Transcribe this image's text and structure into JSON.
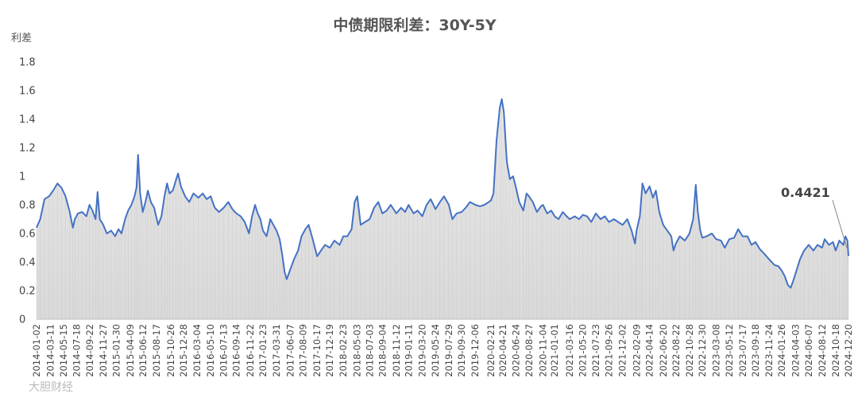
{
  "chart_data": {
    "type": "area",
    "title": "中债期限利差：30Y-5Y",
    "ylabel": "利差",
    "xlabel": "",
    "ylim": [
      0,
      1.8
    ],
    "yticks": [
      0,
      0.2,
      0.4,
      0.6,
      0.8,
      1,
      1.2,
      1.4,
      1.6,
      1.8
    ],
    "ytick_labels": [
      "0",
      "0.2",
      "0.4",
      "0.6",
      "0.8",
      "1",
      "1.2",
      "1.4",
      "1.6",
      "1.8"
    ],
    "x_tick_labels": [
      "2014-01-02",
      "2014-03-11",
      "2014-05-15",
      "2014-07-18",
      "2014-09-22",
      "2014-11-27",
      "2015-01-30",
      "2015-04-09",
      "2015-06-12",
      "2015-08-17",
      "2015-10-26",
      "2015-12-28",
      "2016-03-04",
      "2016-05-10",
      "2016-07-13",
      "2016-09-14",
      "2016-11-22",
      "2017-01-23",
      "2017-03-31",
      "2017-06-07",
      "2017-08-09",
      "2017-10-17",
      "2017-12-19",
      "2018-02-23",
      "2018-05-03",
      "2018-07-03",
      "2018-09-04",
      "2018-11-12",
      "2019-01-11",
      "2019-03-20",
      "2019-05-24",
      "2019-07-29",
      "2019-09-30",
      "2019-12-06",
      "2020-02-21",
      "2020-04-21",
      "2020-06-24",
      "2020-08-27",
      "2020-11-04",
      "2021-01-01",
      "2021-03-16",
      "2021-05-20",
      "2021-07-23",
      "2021-09-26",
      "2021-12-02",
      "2022-02-09",
      "2022-04-14",
      "2022-06-20",
      "2022-08-22",
      "2022-10-28",
      "2022-12-30",
      "2023-03-08",
      "2023-05-12",
      "2023-07-17",
      "2023-09-18",
      "2023-11-24",
      "2024-01-26",
      "2024-04-03",
      "2024-06-07",
      "2024-08-12",
      "2024-10-18",
      "2024-12-20"
    ],
    "series": [
      {
        "color": "#4472C4",
        "fill": "#d9d9d9",
        "points": [
          [
            "2014-01-02",
            0.64
          ],
          [
            "2014-01-20",
            0.7
          ],
          [
            "2014-02-10",
            0.84
          ],
          [
            "2014-03-05",
            0.86
          ],
          [
            "2014-03-25",
            0.9
          ],
          [
            "2014-04-15",
            0.95
          ],
          [
            "2014-05-05",
            0.92
          ],
          [
            "2014-05-25",
            0.86
          ],
          [
            "2014-06-15",
            0.75
          ],
          [
            "2014-06-30",
            0.64
          ],
          [
            "2014-07-10",
            0.7
          ],
          [
            "2014-07-25",
            0.74
          ],
          [
            "2014-08-15",
            0.75
          ],
          [
            "2014-09-05",
            0.72
          ],
          [
            "2014-09-20",
            0.8
          ],
          [
            "2014-10-05",
            0.76
          ],
          [
            "2014-10-20",
            0.7
          ],
          [
            "2014-10-30",
            0.89
          ],
          [
            "2014-11-10",
            0.7
          ],
          [
            "2014-11-27",
            0.66
          ],
          [
            "2014-12-15",
            0.6
          ],
          [
            "2015-01-05",
            0.62
          ],
          [
            "2015-01-25",
            0.58
          ],
          [
            "2015-02-10",
            0.63
          ],
          [
            "2015-02-25",
            0.6
          ],
          [
            "2015-03-15",
            0.7
          ],
          [
            "2015-03-30",
            0.76
          ],
          [
            "2015-04-15",
            0.8
          ],
          [
            "2015-04-30",
            0.86
          ],
          [
            "2015-05-10",
            0.92
          ],
          [
            "2015-05-18",
            1.15
          ],
          [
            "2015-05-28",
            0.88
          ],
          [
            "2015-06-10",
            0.75
          ],
          [
            "2015-06-25",
            0.83
          ],
          [
            "2015-07-05",
            0.9
          ],
          [
            "2015-07-20",
            0.82
          ],
          [
            "2015-08-05",
            0.78
          ],
          [
            "2015-08-25",
            0.66
          ],
          [
            "2015-09-10",
            0.72
          ],
          [
            "2015-09-25",
            0.86
          ],
          [
            "2015-10-08",
            0.95
          ],
          [
            "2015-10-20",
            0.88
          ],
          [
            "2015-11-05",
            0.9
          ],
          [
            "2015-11-20",
            0.97
          ],
          [
            "2015-12-01",
            1.02
          ],
          [
            "2015-12-15",
            0.93
          ],
          [
            "2016-01-05",
            0.86
          ],
          [
            "2016-01-25",
            0.82
          ],
          [
            "2016-02-15",
            0.88
          ],
          [
            "2016-03-10",
            0.85
          ],
          [
            "2016-04-01",
            0.88
          ],
          [
            "2016-04-20",
            0.84
          ],
          [
            "2016-05-10",
            0.86
          ],
          [
            "2016-05-30",
            0.78
          ],
          [
            "2016-06-20",
            0.75
          ],
          [
            "2016-07-13",
            0.78
          ],
          [
            "2016-08-05",
            0.82
          ],
          [
            "2016-08-25",
            0.77
          ],
          [
            "2016-09-14",
            0.74
          ],
          [
            "2016-10-05",
            0.72
          ],
          [
            "2016-10-25",
            0.68
          ],
          [
            "2016-11-15",
            0.6
          ],
          [
            "2016-11-30",
            0.72
          ],
          [
            "2016-12-15",
            0.8
          ],
          [
            "2016-12-28",
            0.74
          ],
          [
            "2017-01-10",
            0.7
          ],
          [
            "2017-01-23",
            0.62
          ],
          [
            "2017-02-10",
            0.58
          ],
          [
            "2017-02-28",
            0.7
          ],
          [
            "2017-03-15",
            0.66
          ],
          [
            "2017-03-31",
            0.62
          ],
          [
            "2017-04-15",
            0.56
          ],
          [
            "2017-04-28",
            0.45
          ],
          [
            "2017-05-10",
            0.33
          ],
          [
            "2017-05-20",
            0.28
          ],
          [
            "2017-06-07",
            0.35
          ],
          [
            "2017-06-25",
            0.42
          ],
          [
            "2017-07-15",
            0.48
          ],
          [
            "2017-08-01",
            0.58
          ],
          [
            "2017-08-20",
            0.63
          ],
          [
            "2017-09-05",
            0.66
          ],
          [
            "2017-09-25",
            0.56
          ],
          [
            "2017-10-17",
            0.44
          ],
          [
            "2017-11-05",
            0.48
          ],
          [
            "2017-11-25",
            0.52
          ],
          [
            "2017-12-19",
            0.5
          ],
          [
            "2018-01-10",
            0.55
          ],
          [
            "2018-02-05",
            0.52
          ],
          [
            "2018-02-23",
            0.58
          ],
          [
            "2018-03-15",
            0.58
          ],
          [
            "2018-04-05",
            0.63
          ],
          [
            "2018-04-20",
            0.82
          ],
          [
            "2018-05-03",
            0.86
          ],
          [
            "2018-05-20",
            0.66
          ],
          [
            "2018-06-10",
            0.68
          ],
          [
            "2018-07-03",
            0.7
          ],
          [
            "2018-07-25",
            0.78
          ],
          [
            "2018-08-15",
            0.82
          ],
          [
            "2018-09-04",
            0.74
          ],
          [
            "2018-09-25",
            0.76
          ],
          [
            "2018-10-15",
            0.8
          ],
          [
            "2018-11-12",
            0.74
          ],
          [
            "2018-12-05",
            0.78
          ],
          [
            "2018-12-25",
            0.75
          ],
          [
            "2019-01-11",
            0.8
          ],
          [
            "2019-02-05",
            0.74
          ],
          [
            "2019-02-25",
            0.76
          ],
          [
            "2019-03-20",
            0.72
          ],
          [
            "2019-04-10",
            0.8
          ],
          [
            "2019-04-30",
            0.84
          ],
          [
            "2019-05-24",
            0.77
          ],
          [
            "2019-06-15",
            0.82
          ],
          [
            "2019-07-05",
            0.86
          ],
          [
            "2019-07-29",
            0.8
          ],
          [
            "2019-08-15",
            0.7
          ],
          [
            "2019-09-05",
            0.74
          ],
          [
            "2019-09-30",
            0.75
          ],
          [
            "2019-10-20",
            0.78
          ],
          [
            "2019-11-10",
            0.82
          ],
          [
            "2019-12-06",
            0.8
          ],
          [
            "2019-12-30",
            0.79
          ],
          [
            "2020-01-20",
            0.8
          ],
          [
            "2020-02-21",
            0.83
          ],
          [
            "2020-03-05",
            0.88
          ],
          [
            "2020-03-20",
            1.25
          ],
          [
            "2020-04-05",
            1.48
          ],
          [
            "2020-04-15",
            1.54
          ],
          [
            "2020-04-25",
            1.45
          ],
          [
            "2020-05-10",
            1.1
          ],
          [
            "2020-05-25",
            0.98
          ],
          [
            "2020-06-10",
            1.0
          ],
          [
            "2020-06-24",
            0.92
          ],
          [
            "2020-07-10",
            0.82
          ],
          [
            "2020-07-30",
            0.76
          ],
          [
            "2020-08-15",
            0.88
          ],
          [
            "2020-08-27",
            0.86
          ],
          [
            "2020-09-15",
            0.82
          ],
          [
            "2020-10-05",
            0.75
          ],
          [
            "2020-10-25",
            0.79
          ],
          [
            "2020-11-04",
            0.8
          ],
          [
            "2020-11-25",
            0.74
          ],
          [
            "2020-12-15",
            0.76
          ],
          [
            "2021-01-01",
            0.72
          ],
          [
            "2021-01-20",
            0.7
          ],
          [
            "2021-02-10",
            0.75
          ],
          [
            "2021-03-01",
            0.72
          ],
          [
            "2021-03-16",
            0.7
          ],
          [
            "2021-04-10",
            0.72
          ],
          [
            "2021-05-01",
            0.7
          ],
          [
            "2021-05-20",
            0.73
          ],
          [
            "2021-06-10",
            0.72
          ],
          [
            "2021-06-30",
            0.68
          ],
          [
            "2021-07-23",
            0.74
          ],
          [
            "2021-08-15",
            0.7
          ],
          [
            "2021-09-05",
            0.72
          ],
          [
            "2021-09-26",
            0.68
          ],
          [
            "2021-10-20",
            0.7
          ],
          [
            "2021-11-10",
            0.68
          ],
          [
            "2021-12-02",
            0.66
          ],
          [
            "2021-12-25",
            0.7
          ],
          [
            "2022-01-15",
            0.62
          ],
          [
            "2022-02-01",
            0.53
          ],
          [
            "2022-02-09",
            0.62
          ],
          [
            "2022-02-25",
            0.72
          ],
          [
            "2022-03-10",
            0.95
          ],
          [
            "2022-03-25",
            0.88
          ],
          [
            "2022-04-14",
            0.93
          ],
          [
            "2022-04-30",
            0.85
          ],
          [
            "2022-05-15",
            0.9
          ],
          [
            "2022-06-01",
            0.75
          ],
          [
            "2022-06-20",
            0.66
          ],
          [
            "2022-07-10",
            0.62
          ],
          [
            "2022-07-30",
            0.58
          ],
          [
            "2022-08-10",
            0.48
          ],
          [
            "2022-08-22",
            0.53
          ],
          [
            "2022-09-10",
            0.58
          ],
          [
            "2022-10-05",
            0.55
          ],
          [
            "2022-10-28",
            0.6
          ],
          [
            "2022-11-15",
            0.7
          ],
          [
            "2022-11-28",
            0.94
          ],
          [
            "2022-12-08",
            0.75
          ],
          [
            "2022-12-20",
            0.62
          ],
          [
            "2022-12-30",
            0.57
          ],
          [
            "2023-01-20",
            0.58
          ],
          [
            "2023-02-15",
            0.6
          ],
          [
            "2023-03-08",
            0.56
          ],
          [
            "2023-04-01",
            0.55
          ],
          [
            "2023-04-20",
            0.5
          ],
          [
            "2023-05-12",
            0.56
          ],
          [
            "2023-06-05",
            0.57
          ],
          [
            "2023-06-25",
            0.63
          ],
          [
            "2023-07-17",
            0.58
          ],
          [
            "2023-08-10",
            0.58
          ],
          [
            "2023-08-30",
            0.52
          ],
          [
            "2023-09-18",
            0.54
          ],
          [
            "2023-10-10",
            0.49
          ],
          [
            "2023-10-30",
            0.46
          ],
          [
            "2023-11-24",
            0.42
          ],
          [
            "2023-12-20",
            0.38
          ],
          [
            "2024-01-10",
            0.37
          ],
          [
            "2024-01-26",
            0.34
          ],
          [
            "2024-02-10",
            0.3
          ],
          [
            "2024-02-25",
            0.24
          ],
          [
            "2024-03-10",
            0.22
          ],
          [
            "2024-03-25",
            0.28
          ],
          [
            "2024-04-03",
            0.32
          ],
          [
            "2024-04-25",
            0.42
          ],
          [
            "2024-05-15",
            0.48
          ],
          [
            "2024-06-07",
            0.52
          ],
          [
            "2024-06-30",
            0.48
          ],
          [
            "2024-07-20",
            0.52
          ],
          [
            "2024-08-12",
            0.5
          ],
          [
            "2024-08-25",
            0.56
          ],
          [
            "2024-09-15",
            0.52
          ],
          [
            "2024-10-05",
            0.54
          ],
          [
            "2024-10-18",
            0.48
          ],
          [
            "2024-11-05",
            0.55
          ],
          [
            "2024-11-25",
            0.52
          ],
          [
            "2024-12-05",
            0.58
          ],
          [
            "2024-12-15",
            0.55
          ],
          [
            "2024-12-20",
            0.4421
          ]
        ]
      }
    ],
    "annotation": "0.4421",
    "grid": false,
    "legend": "none"
  },
  "watermark": "大胆财经"
}
